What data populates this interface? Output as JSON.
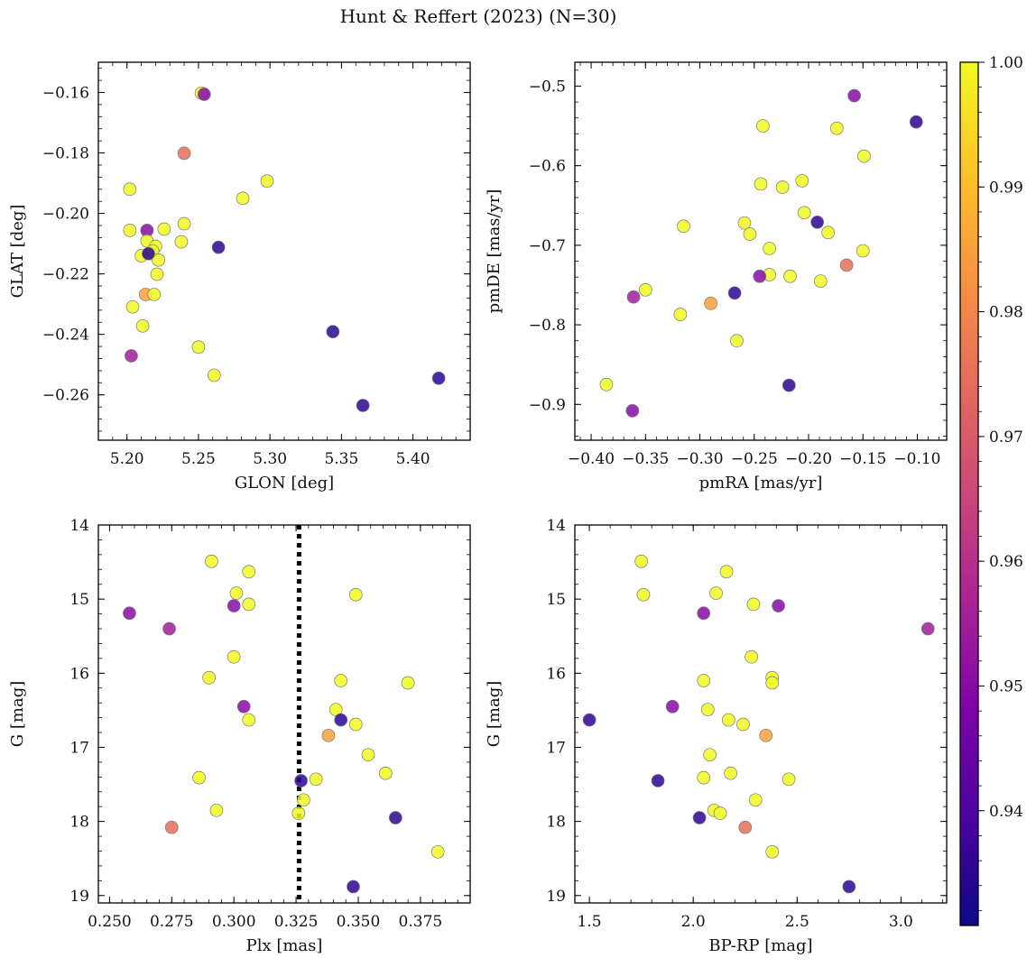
{
  "figure": {
    "title": "Hunt & Reffert (2023) (N=30)"
  },
  "colorbar": {
    "colormap": "plasma",
    "vmin": 0.9308,
    "vmax": 1.0,
    "ticks": [
      0.94,
      0.95,
      0.96,
      0.97,
      0.98,
      0.99,
      1.0
    ],
    "tick_labels": [
      "0.94",
      "0.95",
      "0.96",
      "0.97",
      "0.98",
      "0.99",
      "1.00"
    ]
  },
  "chart_data": [
    {
      "type": "scatter",
      "xlabel": "GLON [deg]",
      "ylabel": "GLAT [deg]",
      "xlim": [
        5.18,
        5.44
      ],
      "ylim": [
        -0.275,
        -0.15
      ],
      "xticks": [
        5.2,
        5.25,
        5.3,
        5.35,
        5.4
      ],
      "xtick_labels": [
        "5.20",
        "5.25",
        "5.30",
        "5.35",
        "5.40"
      ],
      "yticks": [
        -0.26,
        -0.24,
        -0.22,
        -0.2,
        -0.18,
        -0.16
      ],
      "ytick_labels": [
        "−0.26",
        "−0.24",
        "−0.22",
        "−0.20",
        "−0.18",
        "−0.16"
      ],
      "points": [
        {
          "x": 5.252,
          "y": -0.1602,
          "c": 1.0
        },
        {
          "x": 5.254,
          "y": -0.1606,
          "c": 0.95
        },
        {
          "x": 5.24,
          "y": -0.1801,
          "c": 0.975
        },
        {
          "x": 5.202,
          "y": -0.192,
          "c": 1.0
        },
        {
          "x": 5.298,
          "y": -0.1893,
          "c": 1.0
        },
        {
          "x": 5.281,
          "y": -0.195,
          "c": 1.0
        },
        {
          "x": 5.202,
          "y": -0.2056,
          "c": 1.0
        },
        {
          "x": 5.214,
          "y": -0.2056,
          "c": 0.95
        },
        {
          "x": 5.226,
          "y": -0.2052,
          "c": 1.0
        },
        {
          "x": 5.24,
          "y": -0.2034,
          "c": 1.0
        },
        {
          "x": 5.238,
          "y": -0.2094,
          "c": 1.0
        },
        {
          "x": 5.264,
          "y": -0.2112,
          "c": 0.935
        },
        {
          "x": 5.214,
          "y": -0.2091,
          "c": 1.0
        },
        {
          "x": 5.22,
          "y": -0.2109,
          "c": 1.0
        },
        {
          "x": 5.21,
          "y": -0.214,
          "c": 1.0
        },
        {
          "x": 5.216,
          "y": -0.2133,
          "c": 1.0
        },
        {
          "x": 5.218,
          "y": -0.2124,
          "c": 1.0
        },
        {
          "x": 5.222,
          "y": -0.2154,
          "c": 1.0
        },
        {
          "x": 5.221,
          "y": -0.2201,
          "c": 1.0
        },
        {
          "x": 5.213,
          "y": -0.2268,
          "c": 0.985
        },
        {
          "x": 5.219,
          "y": -0.2268,
          "c": 1.0
        },
        {
          "x": 5.204,
          "y": -0.2309,
          "c": 1.0
        },
        {
          "x": 5.211,
          "y": -0.2372,
          "c": 1.0
        },
        {
          "x": 5.203,
          "y": -0.2471,
          "c": 0.955
        },
        {
          "x": 5.25,
          "y": -0.2442,
          "c": 1.0
        },
        {
          "x": 5.261,
          "y": -0.2535,
          "c": 1.0
        },
        {
          "x": 5.344,
          "y": -0.2391,
          "c": 0.935
        },
        {
          "x": 5.365,
          "y": -0.2635,
          "c": 0.935
        },
        {
          "x": 5.418,
          "y": -0.2545,
          "c": 0.935
        },
        {
          "x": 5.215,
          "y": -0.2133,
          "c": 0.935
        }
      ]
    },
    {
      "type": "scatter",
      "xlabel": "pmRA [mas/yr]",
      "ylabel": "pmDE [mas/yr]",
      "xlim": [
        -0.415,
        -0.073
      ],
      "ylim": [
        -0.945,
        -0.47
      ],
      "xticks": [
        -0.4,
        -0.35,
        -0.3,
        -0.25,
        -0.2,
        -0.15,
        -0.1
      ],
      "xtick_labels": [
        "−0.40",
        "−0.35",
        "−0.30",
        "−0.25",
        "−0.20",
        "−0.15",
        "−0.10"
      ],
      "yticks": [
        -0.9,
        -0.8,
        -0.7,
        -0.6,
        -0.5
      ],
      "ytick_labels": [
        "−0.9",
        "−0.8",
        "−0.7",
        "−0.6",
        "−0.5"
      ],
      "points": [
        {
          "x": -0.158,
          "y": -0.512,
          "c": 0.95
        },
        {
          "x": -0.101,
          "y": -0.545,
          "c": 0.935
        },
        {
          "x": -0.242,
          "y": -0.55,
          "c": 1.0
        },
        {
          "x": -0.174,
          "y": -0.553,
          "c": 1.0
        },
        {
          "x": -0.149,
          "y": -0.588,
          "c": 1.0
        },
        {
          "x": -0.206,
          "y": -0.619,
          "c": 1.0
        },
        {
          "x": -0.244,
          "y": -0.623,
          "c": 1.0
        },
        {
          "x": -0.224,
          "y": -0.627,
          "c": 1.0
        },
        {
          "x": -0.204,
          "y": -0.659,
          "c": 1.0
        },
        {
          "x": -0.315,
          "y": -0.676,
          "c": 1.0
        },
        {
          "x": -0.259,
          "y": -0.672,
          "c": 1.0
        },
        {
          "x": -0.192,
          "y": -0.671,
          "c": 0.935
        },
        {
          "x": -0.254,
          "y": -0.686,
          "c": 1.0
        },
        {
          "x": -0.182,
          "y": -0.684,
          "c": 1.0
        },
        {
          "x": -0.236,
          "y": -0.704,
          "c": 1.0
        },
        {
          "x": -0.15,
          "y": -0.707,
          "c": 1.0
        },
        {
          "x": -0.165,
          "y": -0.725,
          "c": 0.975
        },
        {
          "x": -0.236,
          "y": -0.737,
          "c": 1.0
        },
        {
          "x": -0.245,
          "y": -0.739,
          "c": 0.95
        },
        {
          "x": -0.217,
          "y": -0.739,
          "c": 1.0
        },
        {
          "x": -0.189,
          "y": -0.745,
          "c": 1.0
        },
        {
          "x": -0.35,
          "y": -0.756,
          "c": 1.0
        },
        {
          "x": -0.268,
          "y": -0.76,
          "c": 0.935
        },
        {
          "x": -0.361,
          "y": -0.765,
          "c": 0.955
        },
        {
          "x": -0.29,
          "y": -0.773,
          "c": 0.985
        },
        {
          "x": -0.318,
          "y": -0.787,
          "c": 1.0
        },
        {
          "x": -0.266,
          "y": -0.82,
          "c": 1.0
        },
        {
          "x": -0.386,
          "y": -0.875,
          "c": 1.0
        },
        {
          "x": -0.218,
          "y": -0.876,
          "c": 0.935
        },
        {
          "x": -0.362,
          "y": -0.908,
          "c": 0.95
        }
      ]
    },
    {
      "type": "scatter",
      "xlabel": "Plx [mas]",
      "ylabel": "G [mag]",
      "xlim": [
        0.2455,
        0.395
      ],
      "ylim": [
        19.1,
        14.0
      ],
      "y_inverted": true,
      "vline": {
        "x": 0.3262,
        "style": "dotted",
        "color": "#000000"
      },
      "xticks": [
        0.25,
        0.275,
        0.3,
        0.325,
        0.35,
        0.375
      ],
      "xtick_labels": [
        "0.250",
        "0.275",
        "0.300",
        "0.325",
        "0.350",
        "0.375"
      ],
      "yticks": [
        14,
        15,
        16,
        17,
        18,
        19
      ],
      "ytick_labels": [
        "14",
        "15",
        "16",
        "17",
        "18",
        "19"
      ],
      "points": [
        {
          "x": 0.291,
          "y": 14.49,
          "c": 1.0
        },
        {
          "x": 0.306,
          "y": 14.63,
          "c": 1.0
        },
        {
          "x": 0.349,
          "y": 14.94,
          "c": 1.0
        },
        {
          "x": 0.301,
          "y": 14.92,
          "c": 1.0
        },
        {
          "x": 0.306,
          "y": 15.07,
          "c": 1.0
        },
        {
          "x": 0.3,
          "y": 15.09,
          "c": 0.95
        },
        {
          "x": 0.258,
          "y": 15.19,
          "c": 0.95
        },
        {
          "x": 0.274,
          "y": 15.4,
          "c": 0.955
        },
        {
          "x": 0.3,
          "y": 15.78,
          "c": 1.0
        },
        {
          "x": 0.29,
          "y": 16.06,
          "c": 1.0
        },
        {
          "x": 0.343,
          "y": 16.1,
          "c": 1.0
        },
        {
          "x": 0.37,
          "y": 16.13,
          "c": 1.0
        },
        {
          "x": 0.304,
          "y": 16.45,
          "c": 0.95
        },
        {
          "x": 0.341,
          "y": 16.49,
          "c": 1.0
        },
        {
          "x": 0.306,
          "y": 16.63,
          "c": 1.0
        },
        {
          "x": 0.343,
          "y": 16.63,
          "c": 0.935
        },
        {
          "x": 0.349,
          "y": 16.69,
          "c": 1.0
        },
        {
          "x": 0.338,
          "y": 16.84,
          "c": 0.985
        },
        {
          "x": 0.354,
          "y": 17.1,
          "c": 1.0
        },
        {
          "x": 0.361,
          "y": 17.35,
          "c": 1.0
        },
        {
          "x": 0.286,
          "y": 17.41,
          "c": 1.0
        },
        {
          "x": 0.333,
          "y": 17.43,
          "c": 1.0
        },
        {
          "x": 0.327,
          "y": 17.45,
          "c": 0.935
        },
        {
          "x": 0.328,
          "y": 17.71,
          "c": 1.0
        },
        {
          "x": 0.293,
          "y": 17.85,
          "c": 1.0
        },
        {
          "x": 0.326,
          "y": 17.89,
          "c": 1.0
        },
        {
          "x": 0.365,
          "y": 17.95,
          "c": 0.935
        },
        {
          "x": 0.275,
          "y": 18.08,
          "c": 0.975
        },
        {
          "x": 0.382,
          "y": 18.41,
          "c": 1.0
        },
        {
          "x": 0.348,
          "y": 18.88,
          "c": 0.935
        }
      ]
    },
    {
      "type": "scatter",
      "xlabel": "BP-RP [mag]",
      "ylabel": "G [mag]",
      "xlim": [
        1.43,
        3.22
      ],
      "ylim": [
        19.1,
        14.0
      ],
      "y_inverted": true,
      "xticks": [
        1.5,
        2.0,
        2.5,
        3.0
      ],
      "xtick_labels": [
        "1.5",
        "2.0",
        "2.5",
        "3.0"
      ],
      "yticks": [
        14,
        15,
        16,
        17,
        18,
        19
      ],
      "ytick_labels": [
        "14",
        "15",
        "16",
        "17",
        "18",
        "19"
      ],
      "points": [
        {
          "x": 1.75,
          "y": 14.49,
          "c": 1.0
        },
        {
          "x": 2.16,
          "y": 14.63,
          "c": 1.0
        },
        {
          "x": 1.76,
          "y": 14.94,
          "c": 1.0
        },
        {
          "x": 2.11,
          "y": 14.92,
          "c": 1.0
        },
        {
          "x": 2.29,
          "y": 15.07,
          "c": 1.0
        },
        {
          "x": 2.41,
          "y": 15.09,
          "c": 0.95
        },
        {
          "x": 2.05,
          "y": 15.19,
          "c": 0.95
        },
        {
          "x": 3.13,
          "y": 15.4,
          "c": 0.955
        },
        {
          "x": 2.28,
          "y": 15.78,
          "c": 1.0
        },
        {
          "x": 2.38,
          "y": 16.06,
          "c": 1.0
        },
        {
          "x": 2.05,
          "y": 16.1,
          "c": 1.0
        },
        {
          "x": 2.38,
          "y": 16.13,
          "c": 1.0
        },
        {
          "x": 1.9,
          "y": 16.45,
          "c": 0.95
        },
        {
          "x": 2.07,
          "y": 16.49,
          "c": 1.0
        },
        {
          "x": 2.17,
          "y": 16.63,
          "c": 1.0
        },
        {
          "x": 1.5,
          "y": 16.63,
          "c": 0.935
        },
        {
          "x": 2.24,
          "y": 16.69,
          "c": 1.0
        },
        {
          "x": 2.35,
          "y": 16.84,
          "c": 0.985
        },
        {
          "x": 2.08,
          "y": 17.1,
          "c": 1.0
        },
        {
          "x": 2.18,
          "y": 17.35,
          "c": 1.0
        },
        {
          "x": 2.05,
          "y": 17.41,
          "c": 1.0
        },
        {
          "x": 2.46,
          "y": 17.43,
          "c": 1.0
        },
        {
          "x": 1.83,
          "y": 17.45,
          "c": 0.935
        },
        {
          "x": 2.3,
          "y": 17.71,
          "c": 1.0
        },
        {
          "x": 2.1,
          "y": 17.85,
          "c": 1.0
        },
        {
          "x": 2.13,
          "y": 17.89,
          "c": 1.0
        },
        {
          "x": 2.03,
          "y": 17.95,
          "c": 0.935
        },
        {
          "x": 2.25,
          "y": 18.08,
          "c": 0.975
        },
        {
          "x": 2.38,
          "y": 18.41,
          "c": 1.0
        },
        {
          "x": 2.75,
          "y": 18.88,
          "c": 0.935
        }
      ]
    }
  ]
}
